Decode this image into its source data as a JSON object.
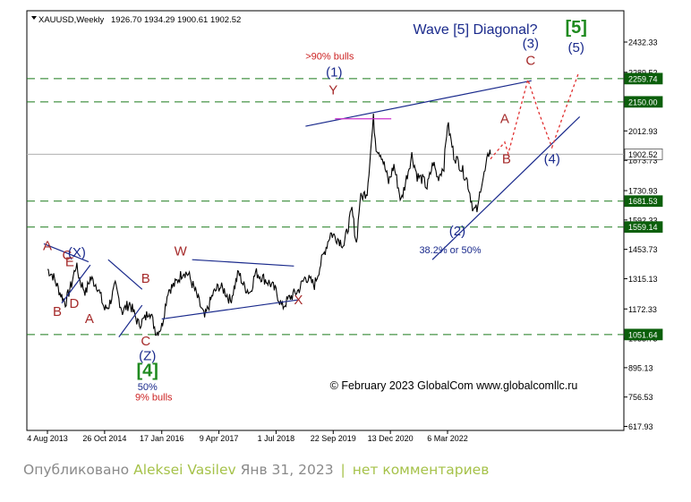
{
  "chart_data": {
    "type": "line",
    "header": {
      "symbol": "XAUUSD,Weekly",
      "ohlc": "1926.70 1934.29 1900.61 1902.52"
    },
    "title": "Wave [5]  Diagonal?",
    "copyright": "© February 2023 GlobalCom www.globalcomllc.ru",
    "ylim": [
      617.93,
      2560
    ],
    "y_ticks": [
      "2432.33",
      "2289.52",
      "2012.93",
      "1873.73",
      "1730.93",
      "1592.33",
      "1453.73",
      "1315.13",
      "1172.33",
      "1033.73",
      "895.13",
      "756.53",
      "617.93"
    ],
    "x_ticks": [
      "4 Aug 2013",
      "26 Oct 2014",
      "17 Jan 2016",
      "9 Apr 2017",
      "1 Jul 2018",
      "22 Sep 2019",
      "13 Dec 2020",
      "6 Mar 2022"
    ],
    "x_tick_dates": [
      "2013-08-04",
      "2014-10-26",
      "2016-01-17",
      "2017-04-09",
      "2018-07-01",
      "2019-09-22",
      "2020-12-13",
      "2022-03-06"
    ],
    "price_labels": [
      {
        "text": "2259.74",
        "value": 2259.74,
        "style": "green"
      },
      {
        "text": "2150.00",
        "value": 2150.0,
        "style": "green"
      },
      {
        "text": "1902.52",
        "value": 1902.52,
        "style": "current"
      },
      {
        "text": "1681.53",
        "value": 1681.53,
        "style": "green"
      },
      {
        "text": "1559.14",
        "value": 1559.14,
        "style": "green"
      },
      {
        "text": "1051.64",
        "value": 1051.64,
        "style": "green"
      }
    ],
    "levels": [
      2259.74,
      2150.0,
      1681.53,
      1559.14,
      1051.64
    ],
    "current_price": 1902.52,
    "series": [
      {
        "values": [
          [
            "2013-08-04",
            1360
          ],
          [
            "2013-09-15",
            1330
          ],
          [
            "2013-11-10",
            1250
          ],
          [
            "2013-12-22",
            1200
          ],
          [
            "2014-02-09",
            1290
          ],
          [
            "2014-03-16",
            1380
          ],
          [
            "2014-04-20",
            1300
          ],
          [
            "2014-06-01",
            1250
          ],
          [
            "2014-07-06",
            1320
          ],
          [
            "2014-08-31",
            1280
          ],
          [
            "2014-10-26",
            1170
          ],
          [
            "2014-11-30",
            1190
          ],
          [
            "2015-01-18",
            1280
          ],
          [
            "2015-03-15",
            1160
          ],
          [
            "2015-05-10",
            1200
          ],
          [
            "2015-07-19",
            1100
          ],
          [
            "2015-09-06",
            1125
          ],
          [
            "2015-10-11",
            1170
          ],
          [
            "2015-12-06",
            1060
          ],
          [
            "2016-01-17",
            1090
          ],
          [
            "2016-03-06",
            1260
          ],
          [
            "2016-05-01",
            1290
          ],
          [
            "2016-07-03",
            1350
          ],
          [
            "2016-08-14",
            1335
          ],
          [
            "2016-10-09",
            1250
          ],
          [
            "2016-12-18",
            1130
          ],
          [
            "2017-02-19",
            1240
          ],
          [
            "2017-04-09",
            1280
          ],
          [
            "2017-05-21",
            1260
          ],
          [
            "2017-07-09",
            1210
          ],
          [
            "2017-09-10",
            1345
          ],
          [
            "2017-10-22",
            1280
          ],
          [
            "2017-12-10",
            1250
          ],
          [
            "2018-01-21",
            1345
          ],
          [
            "2018-03-18",
            1320
          ],
          [
            "2018-05-20",
            1290
          ],
          [
            "2018-07-01",
            1255
          ],
          [
            "2018-08-19",
            1180
          ],
          [
            "2018-10-14",
            1225
          ],
          [
            "2018-12-23",
            1260
          ],
          [
            "2019-02-17",
            1325
          ],
          [
            "2019-04-28",
            1285
          ],
          [
            "2019-06-23",
            1400
          ],
          [
            "2019-09-01",
            1530
          ],
          [
            "2019-10-27",
            1505
          ],
          [
            "2019-12-15",
            1475
          ],
          [
            "2020-02-16",
            1640
          ],
          [
            "2020-03-22",
            1480
          ],
          [
            "2020-04-19",
            1690
          ],
          [
            "2020-06-14",
            1730
          ],
          [
            "2020-08-02",
            2070
          ],
          [
            "2020-08-23",
            1940
          ],
          [
            "2020-10-04",
            1900
          ],
          [
            "2020-11-29",
            1770
          ],
          [
            "2021-01-10",
            1850
          ],
          [
            "2021-03-07",
            1680
          ],
          [
            "2021-05-30",
            1900
          ],
          [
            "2021-07-11",
            1800
          ],
          [
            "2021-08-29",
            1780
          ],
          [
            "2021-09-26",
            1745
          ],
          [
            "2021-11-14",
            1865
          ],
          [
            "2021-12-19",
            1790
          ],
          [
            "2022-02-06",
            1850
          ],
          [
            "2022-03-06",
            2050
          ],
          [
            "2022-04-24",
            1900
          ],
          [
            "2022-06-12",
            1850
          ],
          [
            "2022-08-07",
            1780
          ],
          [
            "2022-09-25",
            1640
          ],
          [
            "2022-10-30",
            1640
          ],
          [
            "2022-11-20",
            1750
          ],
          [
            "2022-12-25",
            1820
          ],
          [
            "2023-01-29",
            1927
          ],
          [
            "2023-02-05",
            1902.52
          ]
        ]
      }
    ],
    "wave_labels": [
      {
        "text": "A",
        "date": "2013-08-04",
        "price": 1450,
        "color": "brown"
      },
      {
        "text": "C",
        "date": "2014-01-05",
        "price": 1405,
        "color": "brown"
      },
      {
        "text": "(X)",
        "date": "2014-03-23",
        "price": 1418,
        "color": "navy"
      },
      {
        "text": "E",
        "date": "2014-01-26",
        "price": 1375,
        "color": "brown"
      },
      {
        "text": "B",
        "date": "2013-10-20",
        "price": 1140,
        "color": "brown"
      },
      {
        "text": "D",
        "date": "2014-03-02",
        "price": 1178,
        "color": "brown"
      },
      {
        "text": "A",
        "date": "2014-06-29",
        "price": 1105,
        "color": "brown"
      },
      {
        "text": "B",
        "date": "2015-09-13",
        "price": 1295,
        "color": "brown"
      },
      {
        "text": "W",
        "date": "2016-06-12",
        "price": 1425,
        "color": "brown"
      },
      {
        "text": "C",
        "date": "2015-09-13",
        "price": 1000,
        "color": "brown"
      },
      {
        "text": "(Z)",
        "date": "2015-09-27",
        "price": 930,
        "color": "navy"
      },
      {
        "text": "[4]",
        "date": "2015-09-27",
        "price": 855,
        "color": "green"
      },
      {
        "text": "50%",
        "date": "2015-09-27",
        "price": 790,
        "color": "navy"
      },
      {
        "text": "9% bulls",
        "date": "2015-11-15",
        "price": 740,
        "color": "red"
      },
      {
        "text": "X",
        "date": "2018-12-23",
        "price": 1195,
        "color": "brown"
      },
      {
        "text": ">90% bulls",
        "date": "2019-08-25",
        "price": 2350,
        "color": "red"
      },
      {
        "text": "(1)",
        "date": "2019-09-29",
        "price": 2270,
        "color": "navy"
      },
      {
        "text": "Y",
        "date": "2019-09-22",
        "price": 2185,
        "color": "brown"
      },
      {
        "text": "(2)",
        "date": "2022-05-22",
        "price": 1520,
        "color": "navy"
      },
      {
        "text": "38.2% or 50%",
        "date": "2022-03-27",
        "price": 1435,
        "color": "navy"
      },
      {
        "text": "A",
        "date": "2023-05-28",
        "price": 2050,
        "color": "brown"
      },
      {
        "text": "B",
        "date": "2023-06-11",
        "price": 1860,
        "color": "brown"
      },
      {
        "text": "(3)",
        "date": "2023-12-17",
        "price": 2405,
        "color": "navy"
      },
      {
        "text": "C",
        "date": "2023-12-17",
        "price": 2325,
        "color": "brown"
      },
      {
        "text": "(4)",
        "date": "2024-06-02",
        "price": 1860,
        "color": "navy"
      },
      {
        "text": "[5]",
        "date": "2024-12-08",
        "price": 2475,
        "color": "green"
      },
      {
        "text": "(5)",
        "date": "2024-12-08",
        "price": 2385,
        "color": "navy"
      }
    ],
    "trendlines": [
      {
        "from": [
          "2013-11-24",
          1200
        ],
        "to": [
          "2014-07-06",
          1380
        ],
        "color": "navy"
      },
      {
        "from": [
          "2013-07-07",
          1480
        ],
        "to": [
          "2014-06-22",
          1395
        ],
        "color": "navy"
      },
      {
        "from": [
          "2014-11-23",
          1405
        ],
        "to": [
          "2015-08-16",
          1265
        ],
        "color": "navy"
      },
      {
        "from": [
          "2015-02-15",
          1040
        ],
        "to": [
          "2015-08-16",
          1190
        ],
        "color": "navy"
      },
      {
        "from": [
          "2016-01-17",
          1125
        ],
        "to": [
          "2018-12-16",
          1215
        ],
        "color": "navy"
      },
      {
        "from": [
          "2016-09-11",
          1405
        ],
        "to": [
          "2018-11-18",
          1375
        ],
        "color": "navy"
      },
      {
        "from": [
          "2019-02-17",
          2035
        ],
        "to": [
          "2023-12-24",
          2250
        ],
        "color": "navy"
      },
      {
        "from": [
          "2021-11-07",
          1405
        ],
        "to": [
          "2025-01-05",
          2080
        ],
        "color": "navy"
      },
      {
        "from": [
          "2019-10-06",
          2070
        ],
        "to": [
          "2020-12-20",
          2070
        ],
        "color": "magenta"
      }
    ],
    "projection_path": [
      [
        "2023-02-05",
        1880
      ],
      [
        "2023-05-28",
        1960
      ],
      [
        "2023-06-25",
        1905
      ],
      [
        "2023-11-26",
        2255
      ],
      [
        "2024-02-25",
        2090
      ],
      [
        "2024-06-02",
        1935
      ],
      [
        "2024-08-25",
        2080
      ],
      [
        "2024-12-29",
        2290
      ]
    ]
  },
  "footer": {
    "prefix": "Опубликовано",
    "author": "Aleksei Vasilev",
    "date": "Янв 31, 2023",
    "separator": "|",
    "comments": "нет комментариев"
  }
}
